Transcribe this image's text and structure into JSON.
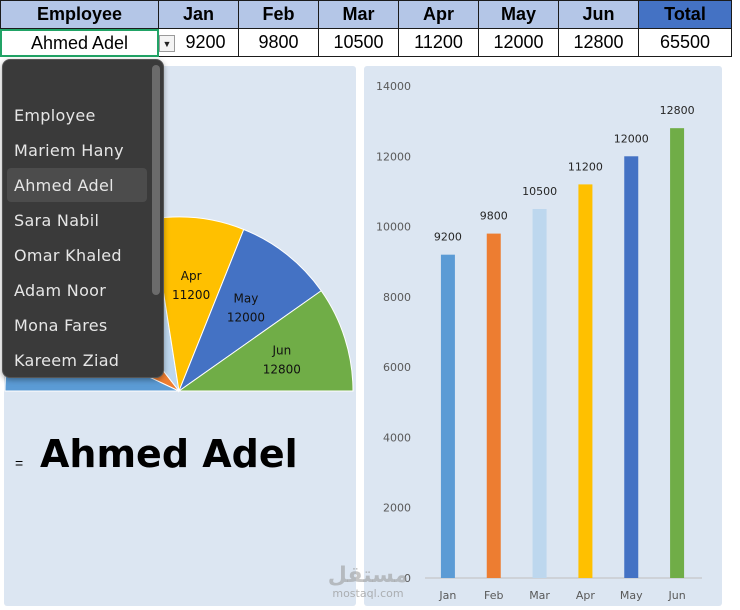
{
  "table": {
    "headers": [
      "Employee",
      "Jan",
      "Feb",
      "Mar",
      "Apr",
      "May",
      "Jun",
      "Total"
    ],
    "values": [
      "Ahmed Adel",
      "9200",
      "9800",
      "10500",
      "11200",
      "12000",
      "12800",
      "65500"
    ]
  },
  "dropdown": {
    "items": [
      "Employee",
      "Mariem Hany",
      "Ahmed Adel",
      "Sara Nabil",
      "Omar Khaled",
      "Adam Noor",
      "Mona Fares",
      "Kareem Ziad"
    ],
    "selected": "Ahmed Adel"
  },
  "display": {
    "equals": "=",
    "name": "Ahmed Adel"
  },
  "watermark": {
    "arabic": "مستقل",
    "latin": "mostaql.com"
  },
  "chart_data": [
    {
      "type": "pie",
      "categories": [
        "Jan",
        "Feb",
        "Mar",
        "Apr",
        "May",
        "Jun"
      ],
      "values": [
        9200,
        9800,
        10500,
        11200,
        12000,
        12800
      ],
      "colors": [
        "#5b9bd5",
        "#ed7d31",
        "#bdd7ee",
        "#ffc000",
        "#4472c4",
        "#70ad47"
      ],
      "labels_visible": [
        "Apr",
        "May",
        "Jun"
      ],
      "note_visible_values": [
        "11200",
        "12000",
        "12800"
      ]
    },
    {
      "type": "bar",
      "categories": [
        "Jan",
        "Feb",
        "Mar",
        "Apr",
        "May",
        "Jun"
      ],
      "values": [
        9200,
        9800,
        10500,
        11200,
        12000,
        12800
      ],
      "colors": [
        "#5b9bd5",
        "#ed7d31",
        "#bdd7ee",
        "#ffc000",
        "#4472c4",
        "#70ad47"
      ],
      "ylim": [
        0,
        14000
      ],
      "yticks": [
        "0",
        "2000",
        "4000",
        "6000",
        "8000",
        "10000",
        "12000",
        "14000"
      ],
      "data_labels": [
        "9200",
        "9800",
        "10500",
        "11200",
        "12000",
        "12800"
      ],
      "grid": false
    }
  ]
}
